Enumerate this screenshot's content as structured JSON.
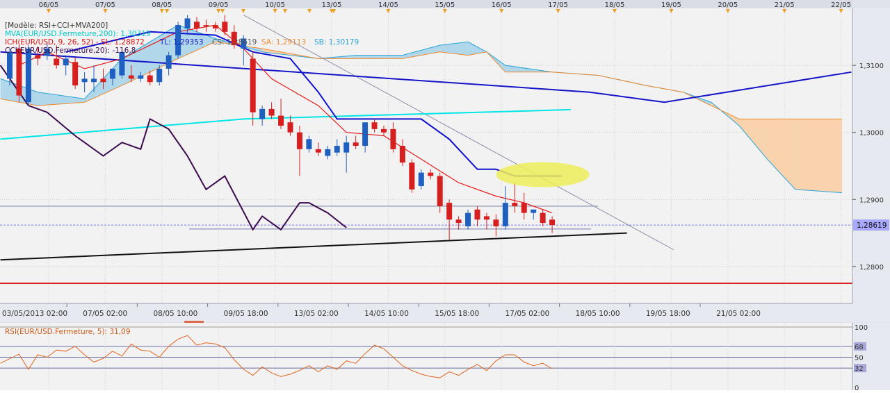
{
  "colors": {
    "background": "#f2f2f2",
    "grid": "#cfcfcf",
    "bull": "#1f5fbf",
    "bear": "#d62020",
    "mva": "#00e5e5",
    "ichimoku_tenkan": "#e81b1b",
    "ichimoku_kijun": "#1010d0",
    "cloud_bull": "#aad4ea",
    "cloud_bear": "#f8cfa6",
    "cci": "#3b0a4e",
    "rsi": "#e0641e",
    "black_trend": "#111111",
    "red_level": "#d92020",
    "last_price_badge": "#a8a8ff",
    "highlight_ellipse": "#eded5a"
  },
  "header": {
    "model": "[Modèle: RSI+CCI+MVA200]",
    "mva": "MVA(EUR/USD.Fermeture,200): 1,30319",
    "ich_prefix": "ICH(EUR/USD, 9, 26, 52) -  SL: 1,28872",
    "ich_tl": "TL: 1,29353",
    "ich_cs": "CS: 1,28619",
    "ich_sa": "SA: 1,29113",
    "ich_sb": "SB: 1,30179",
    "cci_label": "CCI(EUR/USD.Fermeture,20): -116,8"
  },
  "top_dates": [
    "06/05",
    "07/05",
    "08/05",
    "09/05",
    "10/05",
    "13/05",
    "14/05",
    "15/05",
    "16/05",
    "17/05",
    "18/05",
    "19/05",
    "20/05",
    "21/05",
    "22/05"
  ],
  "bottom_dates": [
    "03/05/2013 02:00",
    "07/05 02:00",
    "08/05 10:00",
    "09/05 18:00",
    "13/05 02:00",
    "14/05 10:00",
    "15/05 18:00",
    "17/05 02:00",
    "18/05 10:00",
    "19/05 18:00",
    "21/05 02:00"
  ],
  "last_price_label": "1,28619",
  "rsi_label": "RSI(EUR/USD.Fermeture, 5): 31,09",
  "chart_data": [
    {
      "type": "candlestick",
      "y_axis_ticks": [
        "1,3100",
        "1,3000",
        "1,2900",
        "1,2800"
      ],
      "ylim": [
        1.2745,
        1.3185
      ],
      "candles": [
        {
          "o": 1.308,
          "h": 1.3125,
          "l": 1.307,
          "c": 1.312
        },
        {
          "o": 1.3125,
          "h": 1.313,
          "l": 1.3045,
          "c": 1.3055
        },
        {
          "o": 1.3045,
          "h": 1.313,
          "l": 1.304,
          "c": 1.3125
        },
        {
          "o": 1.3115,
          "h": 1.3128,
          "l": 1.31,
          "c": 1.311
        },
        {
          "o": 1.3115,
          "h": 1.3135,
          "l": 1.3108,
          "c": 1.3125
        },
        {
          "o": 1.311,
          "h": 1.313,
          "l": 1.3095,
          "c": 1.31
        },
        {
          "o": 1.31,
          "h": 1.3115,
          "l": 1.3085,
          "c": 1.311
        },
        {
          "o": 1.3105,
          "h": 1.3112,
          "l": 1.3065,
          "c": 1.307
        },
        {
          "o": 1.3075,
          "h": 1.309,
          "l": 1.306,
          "c": 1.308
        },
        {
          "o": 1.3075,
          "h": 1.31,
          "l": 1.306,
          "c": 1.308
        },
        {
          "o": 1.308,
          "h": 1.3095,
          "l": 1.3065,
          "c": 1.3075
        },
        {
          "o": 1.308,
          "h": 1.3095,
          "l": 1.307,
          "c": 1.3095
        },
        {
          "o": 1.3085,
          "h": 1.3125,
          "l": 1.308,
          "c": 1.312
        },
        {
          "o": 1.3085,
          "h": 1.31,
          "l": 1.3075,
          "c": 1.308
        },
        {
          "o": 1.308,
          "h": 1.309,
          "l": 1.3075,
          "c": 1.3085
        },
        {
          "o": 1.3085,
          "h": 1.3092,
          "l": 1.307,
          "c": 1.3075
        },
        {
          "o": 1.3075,
          "h": 1.31,
          "l": 1.307,
          "c": 1.3095
        },
        {
          "o": 1.3095,
          "h": 1.312,
          "l": 1.3085,
          "c": 1.3115
        },
        {
          "o": 1.3115,
          "h": 1.3165,
          "l": 1.311,
          "c": 1.316
        },
        {
          "o": 1.3155,
          "h": 1.3175,
          "l": 1.3145,
          "c": 1.317
        },
        {
          "o": 1.3165,
          "h": 1.3172,
          "l": 1.315,
          "c": 1.3155
        },
        {
          "o": 1.316,
          "h": 1.3168,
          "l": 1.315,
          "c": 1.3158
        },
        {
          "o": 1.316,
          "h": 1.3165,
          "l": 1.315,
          "c": 1.3155
        },
        {
          "o": 1.3165,
          "h": 1.3175,
          "l": 1.3145,
          "c": 1.315
        },
        {
          "o": 1.315,
          "h": 1.316,
          "l": 1.3125,
          "c": 1.313
        },
        {
          "o": 1.3125,
          "h": 1.3145,
          "l": 1.31,
          "c": 1.314
        },
        {
          "o": 1.311,
          "h": 1.312,
          "l": 1.301,
          "c": 1.303
        },
        {
          "o": 1.302,
          "h": 1.304,
          "l": 1.301,
          "c": 1.3035
        },
        {
          "o": 1.3035,
          "h": 1.3045,
          "l": 1.302,
          "c": 1.3025
        },
        {
          "o": 1.3025,
          "h": 1.305,
          "l": 1.3005,
          "c": 1.301
        },
        {
          "o": 1.3015,
          "h": 1.3025,
          "l": 1.2995,
          "c": 1.3
        },
        {
          "o": 1.3,
          "h": 1.301,
          "l": 1.2935,
          "c": 1.2975
        },
        {
          "o": 1.2975,
          "h": 1.2995,
          "l": 1.297,
          "c": 1.299
        },
        {
          "o": 1.2975,
          "h": 1.2985,
          "l": 1.2965,
          "c": 1.297
        },
        {
          "o": 1.2965,
          "h": 1.298,
          "l": 1.296,
          "c": 1.2975
        },
        {
          "o": 1.297,
          "h": 1.299,
          "l": 1.2965,
          "c": 1.298
        },
        {
          "o": 1.297,
          "h": 1.2995,
          "l": 1.294,
          "c": 1.2985
        },
        {
          "o": 1.2985,
          "h": 1.2995,
          "l": 1.2975,
          "c": 1.298
        },
        {
          "o": 1.298,
          "h": 1.3015,
          "l": 1.297,
          "c": 1.3015
        },
        {
          "o": 1.3015,
          "h": 1.302,
          "l": 1.3,
          "c": 1.3005
        },
        {
          "o": 1.3005,
          "h": 1.301,
          "l": 1.2995,
          "c": 1.3
        },
        {
          "o": 1.3005,
          "h": 1.3015,
          "l": 1.297,
          "c": 1.2975
        },
        {
          "o": 1.298,
          "h": 1.299,
          "l": 1.295,
          "c": 1.2955
        },
        {
          "o": 1.2955,
          "h": 1.296,
          "l": 1.291,
          "c": 1.2915
        },
        {
          "o": 1.292,
          "h": 1.2945,
          "l": 1.2915,
          "c": 1.294
        },
        {
          "o": 1.294,
          "h": 1.2945,
          "l": 1.293,
          "c": 1.2935
        },
        {
          "o": 1.2935,
          "h": 1.294,
          "l": 1.288,
          "c": 1.289
        },
        {
          "o": 1.2895,
          "h": 1.29,
          "l": 1.284,
          "c": 1.287
        },
        {
          "o": 1.287,
          "h": 1.2875,
          "l": 1.2855,
          "c": 1.2865
        },
        {
          "o": 1.286,
          "h": 1.2885,
          "l": 1.2855,
          "c": 1.288
        },
        {
          "o": 1.2885,
          "h": 1.289,
          "l": 1.286,
          "c": 1.287
        },
        {
          "o": 1.2875,
          "h": 1.288,
          "l": 1.2855,
          "c": 1.287
        },
        {
          "o": 1.287,
          "h": 1.2878,
          "l": 1.2845,
          "c": 1.286
        },
        {
          "o": 1.286,
          "h": 1.292,
          "l": 1.2855,
          "c": 1.2895
        },
        {
          "o": 1.2895,
          "h": 1.2925,
          "l": 1.288,
          "c": 1.289
        },
        {
          "o": 1.2895,
          "h": 1.291,
          "l": 1.287,
          "c": 1.288
        },
        {
          "o": 1.288,
          "h": 1.2885,
          "l": 1.287,
          "c": 1.2885
        },
        {
          "o": 1.288,
          "h": 1.2885,
          "l": 1.286,
          "c": 1.2865
        },
        {
          "o": 1.287,
          "h": 1.2875,
          "l": 1.285,
          "c": 1.2862
        }
      ],
      "mva200": [
        [
          -1,
          1.299
        ],
        [
          25,
          1.302
        ],
        [
          60,
          1.3034
        ]
      ],
      "tenkan": [
        [
          1,
          1.31
        ],
        [
          4,
          1.312
        ],
        [
          8,
          1.3095
        ],
        [
          12,
          1.311
        ],
        [
          18,
          1.315
        ],
        [
          22,
          1.316
        ],
        [
          25,
          1.3125
        ],
        [
          28,
          1.308
        ],
        [
          33,
          1.304
        ],
        [
          36,
          1.3
        ],
        [
          40,
          1.2995
        ],
        [
          44,
          1.296
        ],
        [
          48,
          1.2925
        ],
        [
          52,
          1.2905
        ],
        [
          55,
          1.2895
        ],
        [
          58,
          1.288
        ]
      ],
      "kijun": [
        [
          6,
          1.312
        ],
        [
          15,
          1.315
        ],
        [
          22,
          1.3145
        ],
        [
          26,
          1.312
        ],
        [
          30,
          1.311
        ],
        [
          33,
          1.306
        ],
        [
          35,
          1.302
        ],
        [
          44,
          1.302
        ],
        [
          47,
          1.299
        ],
        [
          50,
          1.2945
        ],
        [
          52,
          1.2945
        ],
        [
          54,
          1.2935
        ],
        [
          59,
          1.2935
        ]
      ],
      "cloud_a": [
        [
          -1,
          1.308
        ],
        [
          3,
          1.306
        ],
        [
          8,
          1.305
        ],
        [
          12,
          1.311
        ],
        [
          18,
          1.316
        ],
        [
          22,
          1.314
        ],
        [
          27,
          1.312
        ],
        [
          33,
          1.311
        ],
        [
          37,
          1.3115
        ],
        [
          42,
          1.3115
        ],
        [
          46,
          1.313
        ],
        [
          49,
          1.3135
        ],
        [
          51,
          1.312
        ],
        [
          53,
          1.31
        ],
        [
          58,
          1.309
        ],
        [
          63,
          1.3085
        ],
        [
          68,
          1.307
        ],
        [
          72,
          1.306
        ],
        [
          75,
          1.3045
        ],
        [
          78,
          1.301
        ],
        [
          81,
          1.296
        ],
        [
          84,
          1.2915
        ],
        [
          89,
          1.291
        ]
      ],
      "cloud_b": [
        [
          -1,
          1.305
        ],
        [
          3,
          1.304
        ],
        [
          8,
          1.3045
        ],
        [
          12,
          1.307
        ],
        [
          18,
          1.311
        ],
        [
          22,
          1.3135
        ],
        [
          27,
          1.3125
        ],
        [
          33,
          1.311
        ],
        [
          37,
          1.311
        ],
        [
          42,
          1.311
        ],
        [
          46,
          1.312
        ],
        [
          49,
          1.3115
        ],
        [
          51,
          1.312
        ],
        [
          53,
          1.309
        ],
        [
          58,
          1.309
        ],
        [
          63,
          1.3085
        ],
        [
          68,
          1.307
        ],
        [
          72,
          1.306
        ],
        [
          75,
          1.304
        ],
        [
          78,
          1.302
        ],
        [
          81,
          1.302
        ],
        [
          84,
          1.302
        ],
        [
          89,
          1.302
        ]
      ],
      "cci": [
        [
          -1,
          1.31
        ],
        [
          2,
          1.304
        ],
        [
          4,
          1.303
        ],
        [
          7,
          1.2995
        ],
        [
          10,
          1.2965
        ],
        [
          12,
          1.2985
        ],
        [
          14,
          1.2975
        ],
        [
          15,
          1.302
        ],
        [
          17,
          1.3005
        ],
        [
          19,
          1.2965
        ],
        [
          21,
          1.2915
        ],
        [
          23,
          1.2935
        ],
        [
          26,
          1.2855
        ],
        [
          27,
          1.2875
        ],
        [
          29,
          1.2855
        ],
        [
          31,
          1.2895
        ],
        [
          32,
          1.2895
        ],
        [
          34,
          1.288
        ],
        [
          36,
          1.2858
        ]
      ],
      "blue_trend": [
        [
          -1,
          1.312
        ],
        [
          62,
          1.306
        ],
        [
          70,
          1.3045
        ],
        [
          90,
          1.309
        ]
      ],
      "grey_diagonal": [
        [
          25,
          1.3175
        ],
        [
          71,
          1.2825
        ]
      ],
      "black_trend": [
        [
          -1,
          1.281
        ],
        [
          66,
          1.285
        ]
      ],
      "horizontal_gray": 1.289,
      "horizontal_short": 1.2856,
      "red_level": 1.2775,
      "last_price": 1.28619,
      "ellipse_center": [
        57,
        1.2937
      ]
    },
    {
      "type": "line",
      "name": "RSI",
      "y_axis_ticks": [
        "100",
        "68",
        "50",
        "32",
        "0"
      ],
      "ylim": [
        0,
        100
      ],
      "levels": [
        100,
        68,
        50,
        32
      ],
      "values": [
        [
          -1,
          40
        ],
        [
          1,
          55
        ],
        [
          2,
          30
        ],
        [
          3,
          54
        ],
        [
          4,
          50
        ],
        [
          5,
          62
        ],
        [
          6,
          60
        ],
        [
          7,
          68
        ],
        [
          8,
          54
        ],
        [
          9,
          42
        ],
        [
          10,
          48
        ],
        [
          11,
          60
        ],
        [
          12,
          52
        ],
        [
          13,
          72
        ],
        [
          14,
          62
        ],
        [
          15,
          60
        ],
        [
          16,
          50
        ],
        [
          17,
          68
        ],
        [
          18,
          80
        ],
        [
          19,
          86
        ],
        [
          20,
          70
        ],
        [
          21,
          74
        ],
        [
          22,
          72
        ],
        [
          23,
          66
        ],
        [
          24,
          46
        ],
        [
          25,
          30
        ],
        [
          26,
          20
        ],
        [
          27,
          34
        ],
        [
          28,
          24
        ],
        [
          29,
          18
        ],
        [
          30,
          22
        ],
        [
          31,
          28
        ],
        [
          32,
          36
        ],
        [
          33,
          26
        ],
        [
          34,
          36
        ],
        [
          35,
          30
        ],
        [
          36,
          44
        ],
        [
          37,
          40
        ],
        [
          38,
          56
        ],
        [
          39,
          70
        ],
        [
          40,
          64
        ],
        [
          41,
          50
        ],
        [
          42,
          36
        ],
        [
          43,
          28
        ],
        [
          44,
          22
        ],
        [
          45,
          18
        ],
        [
          46,
          16
        ],
        [
          47,
          26
        ],
        [
          48,
          20
        ],
        [
          49,
          30
        ],
        [
          50,
          38
        ],
        [
          51,
          28
        ],
        [
          52,
          44
        ],
        [
          53,
          54
        ],
        [
          54,
          54
        ],
        [
          55,
          42
        ],
        [
          56,
          36
        ],
        [
          57,
          40
        ],
        [
          58,
          31
        ]
      ]
    }
  ]
}
